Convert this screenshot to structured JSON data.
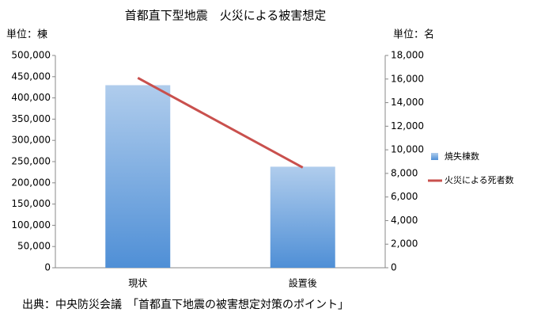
{
  "chart_data": {
    "type": "bar-line",
    "title": "首都直下型地震　火災による被害想定",
    "y_label": "単位：棟",
    "y2_label": "単位：名",
    "source": "出典：中央防災会議　「首都直下地震の被害想定対策のポイント」",
    "categories": [
      "現状",
      "設置後"
    ],
    "series": [
      {
        "name": "焼失棟数",
        "type": "bar",
        "color": "#4f8fd6",
        "values": [
          430000,
          238000
        ]
      },
      {
        "name": "火災による死者数",
        "type": "line",
        "axis": "y2",
        "color": "#c9504d",
        "values": [
          16100,
          8500
        ]
      }
    ],
    "ylim": [
      0,
      500000
    ],
    "yticks": [
      0,
      {
        "value": 50000,
        "label": "50,000"
      },
      {
        "value": 100000,
        "label": "100,000"
      },
      {
        "value": 150000,
        "label": "150,000"
      },
      {
        "value": 200000,
        "label": "200,000"
      },
      {
        "value": 250000,
        "label": "250,000"
      },
      {
        "value": 300000,
        "label": "300,000"
      },
      {
        "value": 350000,
        "label": "350,000"
      },
      {
        "value": 400000,
        "label": "400,000"
      },
      {
        "value": 450000,
        "label": "450,000"
      },
      {
        "value": 500000,
        "label": "500,000"
      }
    ],
    "y2lim": [
      0,
      18000
    ],
    "y2ticks": [
      0,
      {
        "value": 2000,
        "label": "2,000"
      },
      {
        "value": 4000,
        "label": "4,000"
      },
      {
        "value": 6000,
        "label": "6,000"
      },
      {
        "value": 8000,
        "label": "8,000"
      },
      {
        "value": 10000,
        "label": "10,000"
      },
      {
        "value": 12000,
        "label": "12,000"
      },
      {
        "value": 14000,
        "label": "14,000"
      },
      {
        "value": 16000,
        "label": "16,000"
      },
      {
        "value": 18000,
        "label": "18,000"
      }
    ],
    "legend": "right"
  }
}
